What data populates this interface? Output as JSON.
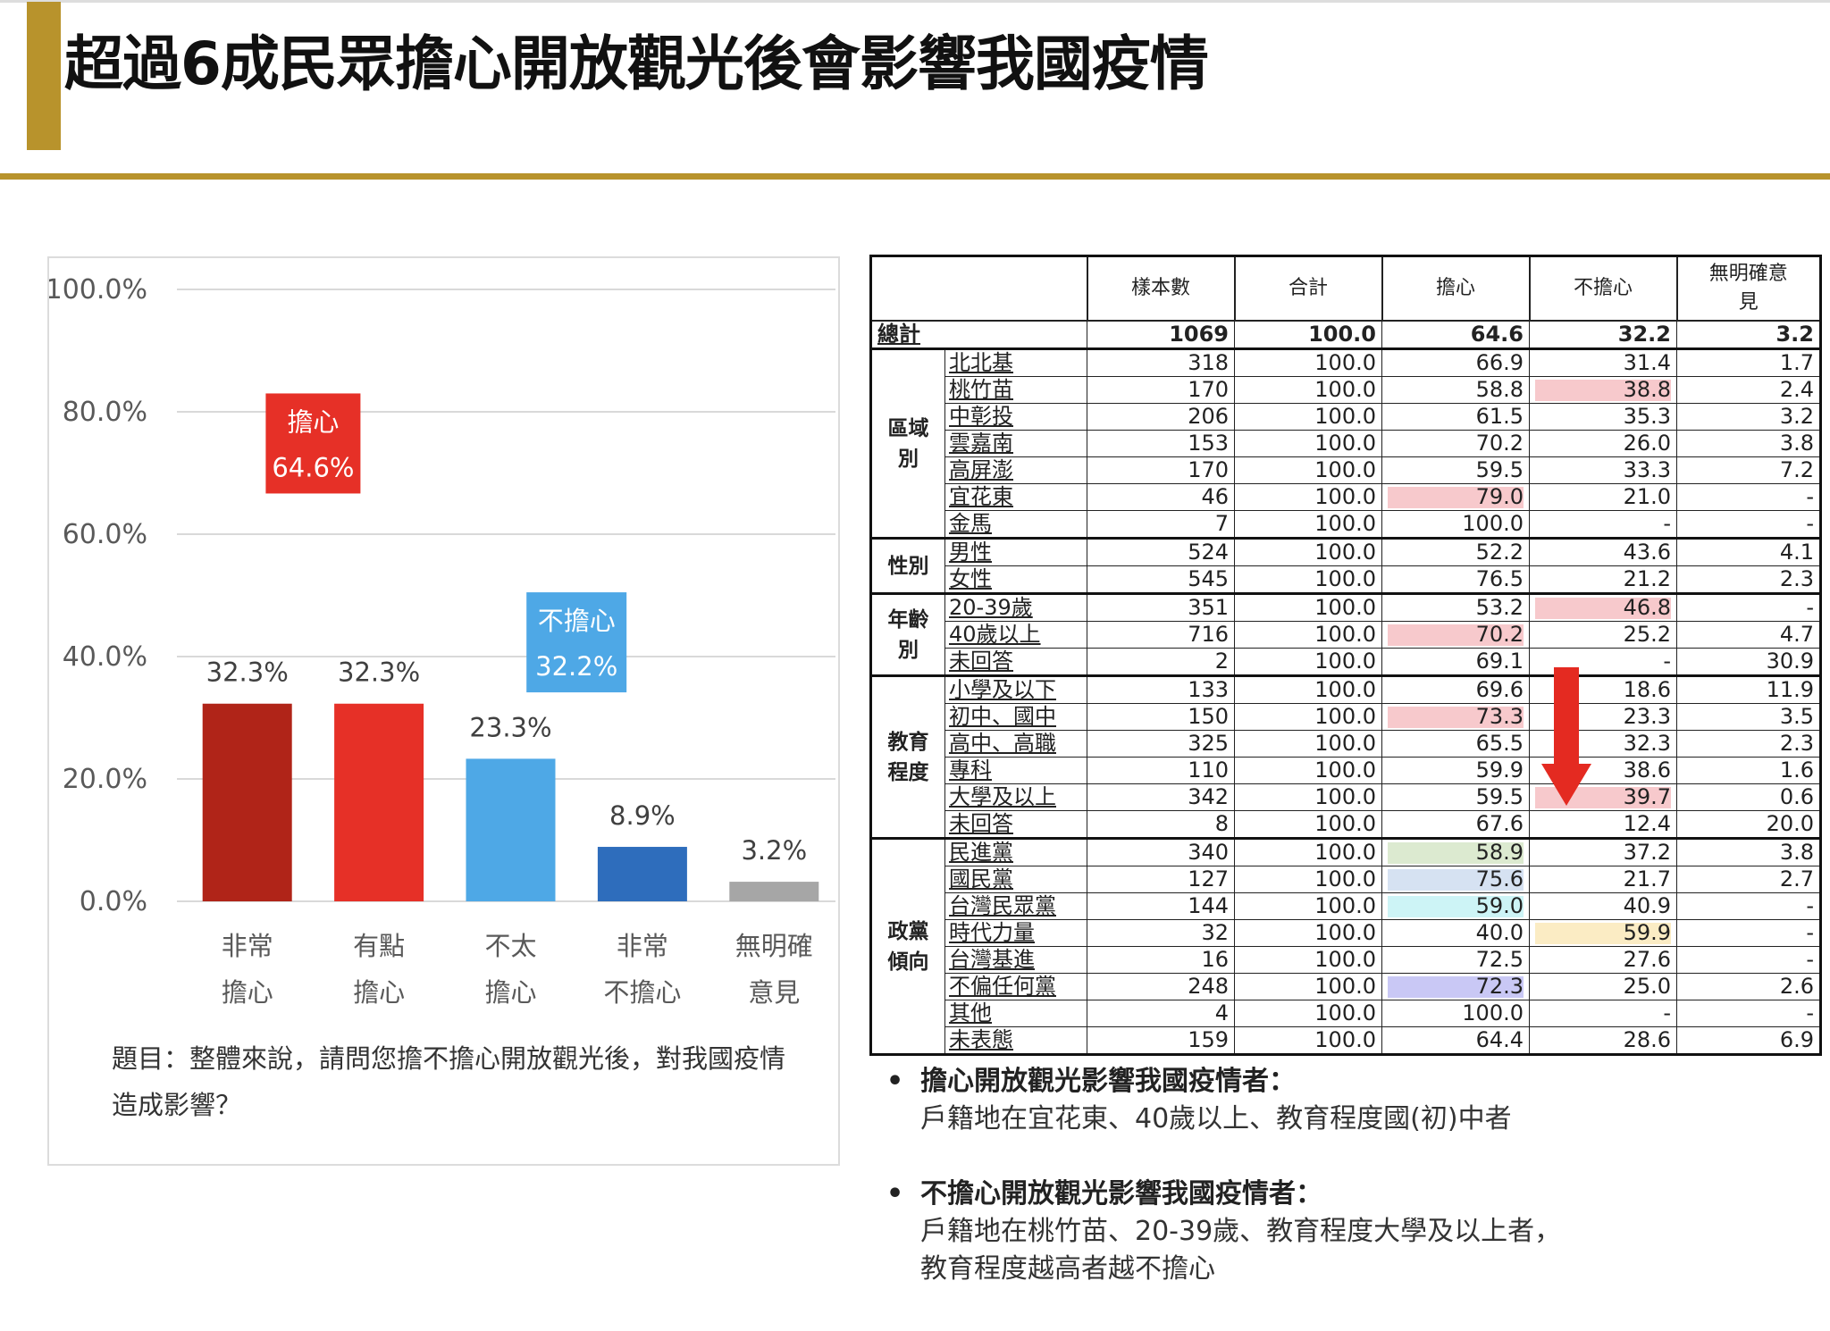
{
  "title": "超過6成民眾擔心開放觀光後會影響我國疫情",
  "question": "題目：整體來說，請問您擔不擔心開放觀光後，對我國疫情造成影響？",
  "chart_data": {
    "type": "bar",
    "categories": [
      [
        "非常",
        "擔心"
      ],
      [
        "有點",
        "擔心"
      ],
      [
        "不太",
        "擔心"
      ],
      [
        "非常",
        "不擔心"
      ],
      [
        "無明確",
        "意見"
      ]
    ],
    "values": [
      32.3,
      32.3,
      23.3,
      8.9,
      3.2
    ],
    "value_labels": [
      "32.3%",
      "32.3%",
      "23.3%",
      "8.9%",
      "3.2%"
    ],
    "colors": [
      "#b02418",
      "#e63027",
      "#4ea8e6",
      "#2e6dbc",
      "#a6a6a6"
    ],
    "ylim": [
      0,
      100
    ],
    "yticks": [
      "0.0%",
      "20.0%",
      "40.0%",
      "60.0%",
      "80.0%",
      "100.0%"
    ],
    "ytick_values": [
      0,
      20,
      40,
      60,
      80,
      100
    ],
    "grid": true,
    "annotations": [
      {
        "label": "擔心",
        "value": "64.6%",
        "color": "#e63027"
      },
      {
        "label": "不擔心",
        "value": "32.2%",
        "color": "#4ea8e6"
      }
    ]
  },
  "table": {
    "headers": [
      "",
      "樣本數",
      "合計",
      "擔心",
      "不擔心",
      "無明確意見"
    ],
    "total": {
      "label": "總計",
      "cells": [
        "1069",
        "100.0",
        "64.6",
        "32.2",
        "3.2"
      ]
    },
    "groups": [
      {
        "name": "區域別",
        "rows": [
          {
            "label": "北北基",
            "cells": [
              "318",
              "100.0",
              "66.9",
              "31.4",
              "1.7"
            ]
          },
          {
            "label": "桃竹苗",
            "cells": [
              "170",
              "100.0",
              "58.8",
              "38.8",
              "2.4"
            ]
          },
          {
            "label": "中彰投",
            "cells": [
              "206",
              "100.0",
              "61.5",
              "35.3",
              "3.2"
            ]
          },
          {
            "label": "雲嘉南",
            "cells": [
              "153",
              "100.0",
              "70.2",
              "26.0",
              "3.8"
            ]
          },
          {
            "label": "高屏澎",
            "cells": [
              "170",
              "100.0",
              "59.5",
              "33.3",
              "7.2"
            ]
          },
          {
            "label": "宜花東",
            "cells": [
              "46",
              "100.0",
              "79.0",
              "21.0",
              "-"
            ]
          },
          {
            "label": "金馬",
            "cells": [
              "7",
              "100.0",
              "100.0",
              "-",
              "-"
            ]
          }
        ]
      },
      {
        "name": "性別",
        "rows": [
          {
            "label": "男性",
            "cells": [
              "524",
              "100.0",
              "52.2",
              "43.6",
              "4.1"
            ]
          },
          {
            "label": "女性",
            "cells": [
              "545",
              "100.0",
              "76.5",
              "21.2",
              "2.3"
            ]
          }
        ]
      },
      {
        "name": "年齡別",
        "rows": [
          {
            "label": "20-39歲",
            "cells": [
              "351",
              "100.0",
              "53.2",
              "46.8",
              "-"
            ]
          },
          {
            "label": "40歲以上",
            "cells": [
              "716",
              "100.0",
              "70.2",
              "25.2",
              "4.7"
            ]
          },
          {
            "label": "未回答",
            "cells": [
              "2",
              "100.0",
              "69.1",
              "-",
              "30.9"
            ]
          }
        ]
      },
      {
        "name": "教育程度",
        "rows": [
          {
            "label": "小學及以下",
            "cells": [
              "133",
              "100.0",
              "69.6",
              "18.6",
              "11.9"
            ]
          },
          {
            "label": "初中、國中",
            "cells": [
              "150",
              "100.0",
              "73.3",
              "23.3",
              "3.5"
            ]
          },
          {
            "label": "高中、高職",
            "cells": [
              "325",
              "100.0",
              "65.5",
              "32.3",
              "2.3"
            ]
          },
          {
            "label": "專科",
            "cells": [
              "110",
              "100.0",
              "59.9",
              "38.6",
              "1.6"
            ]
          },
          {
            "label": "大學及以上",
            "cells": [
              "342",
              "100.0",
              "59.5",
              "39.7",
              "0.6"
            ]
          },
          {
            "label": "未回答",
            "cells": [
              "8",
              "100.0",
              "67.6",
              "12.4",
              "20.0"
            ]
          }
        ]
      },
      {
        "name": "政黨傾向",
        "rows": [
          {
            "label": "民進黨",
            "cells": [
              "340",
              "100.0",
              "58.9",
              "37.2",
              "3.8"
            ]
          },
          {
            "label": "國民黨",
            "cells": [
              "127",
              "100.0",
              "75.6",
              "21.7",
              "2.7"
            ]
          },
          {
            "label": "台灣民眾黨",
            "cells": [
              "144",
              "100.0",
              "59.0",
              "40.9",
              "-"
            ]
          },
          {
            "label": "時代力量",
            "cells": [
              "32",
              "100.0",
              "40.0",
              "59.9",
              "-"
            ]
          },
          {
            "label": "台灣基進",
            "cells": [
              "16",
              "100.0",
              "72.5",
              "27.6",
              "-"
            ]
          },
          {
            "label": "不偏任何黨",
            "cells": [
              "248",
              "100.0",
              "72.3",
              "25.0",
              "2.6"
            ]
          },
          {
            "label": "其他",
            "cells": [
              "4",
              "100.0",
              "100.0",
              "-",
              "-"
            ]
          },
          {
            "label": "未表態",
            "cells": [
              "159",
              "100.0",
              "64.4",
              "28.6",
              "6.9"
            ]
          }
        ]
      }
    ],
    "highlights": [
      {
        "label": "桃竹苗",
        "col": 3,
        "color": "#f7c9cc"
      },
      {
        "label": "宜花東",
        "col": 2,
        "color": "#f7c9cc"
      },
      {
        "label": "20-39歲",
        "col": 3,
        "color": "#f7c9cc"
      },
      {
        "label": "40歲以上",
        "col": 2,
        "color": "#f7c9cc"
      },
      {
        "label": "初中、國中",
        "col": 2,
        "color": "#f7c9cc"
      },
      {
        "label": "大學及以上",
        "col": 3,
        "color": "#f7c9cc"
      },
      {
        "label": "民進黨",
        "col": 2,
        "color": "#dcead0"
      },
      {
        "label": "國民黨",
        "col": 2,
        "color": "#d6e2f2"
      },
      {
        "label": "台灣民眾黨",
        "col": 2,
        "color": "#cdf4f6"
      },
      {
        "label": "時代力量",
        "col": 3,
        "color": "#fbecc4"
      },
      {
        "label": "不偏任何黨",
        "col": 2,
        "color": "#c9c8f5"
      }
    ]
  },
  "notes": [
    {
      "head": "擔心開放觀光影響我國疫情者：",
      "body": [
        "戶籍地在宜花東、40歲以上、教育程度國(初)中者"
      ]
    },
    {
      "head": "不擔心開放觀光影響我國疫情者：",
      "body": [
        "戶籍地在桃竹苗、20-39歲、教育程度大學及以上者，",
        "教育程度越高者越不擔心"
      ]
    }
  ],
  "arrow_color": "#e42a21"
}
